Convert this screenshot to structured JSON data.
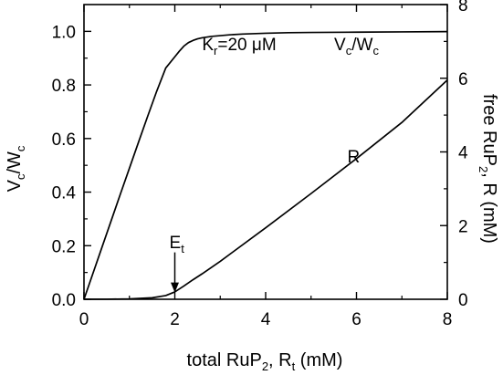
{
  "chart_data": {
    "type": "line",
    "title": "",
    "xlabel": {
      "main": "total RuP",
      "sub1": "2",
      "mid": ", R",
      "sub2": "t",
      "tail": " (mM)"
    },
    "ylabel_left": {
      "a": "V",
      "a_sub": "c",
      "sep": "/W",
      "b_sub": "c"
    },
    "ylabel_right": {
      "main": "free RuP",
      "sub": "2",
      "tail": ", R (mM)"
    },
    "xlim": [
      0,
      8
    ],
    "ylim_left": [
      0,
      1.1
    ],
    "ylim_right": [
      0,
      8
    ],
    "x_ticks": [
      "0",
      "2",
      "4",
      "6",
      "8"
    ],
    "y_left_ticks": [
      "0.0",
      "0.2",
      "0.4",
      "0.6",
      "0.8",
      "1.0"
    ],
    "y_right_ticks": [
      "0",
      "2",
      "4",
      "6",
      "8"
    ],
    "grid": false,
    "series": [
      {
        "axis": "left",
        "x": [
          0,
          0.2,
          0.4,
          0.6,
          0.8,
          1.0,
          1.2,
          1.4,
          1.6,
          1.8,
          2.0,
          2.1,
          2.2,
          2.3,
          2.4,
          2.5,
          2.6,
          2.8,
          3.0,
          3.2,
          3.5,
          4.0,
          4.5,
          5.0,
          6.0,
          7.0,
          8.0
        ],
        "y": [
          0,
          0.098,
          0.196,
          0.294,
          0.392,
          0.489,
          0.586,
          0.682,
          0.776,
          0.863,
          0.905,
          0.926,
          0.945,
          0.958,
          0.966,
          0.972,
          0.976,
          0.981,
          0.984,
          0.987,
          0.99,
          0.993,
          0.995,
          0.996,
          0.997,
          0.998,
          0.999
        ]
      },
      {
        "axis": "right",
        "x": [
          0,
          0.5,
          1.0,
          1.5,
          1.8,
          2.0,
          2.2,
          2.4,
          2.6,
          3.0,
          4.0,
          5.0,
          6.0,
          7.0,
          8.0
        ],
        "y": [
          0,
          0.002,
          0.01,
          0.04,
          0.1,
          0.2,
          0.36,
          0.53,
          0.69,
          1.03,
          1.94,
          2.87,
          3.82,
          4.8,
          5.95
        ]
      }
    ],
    "annotations": {
      "kr": {
        "main": "K",
        "sub": "r",
        "rest": "=20 μM",
        "x": 2.6,
        "y_left": 0.93
      },
      "vw": {
        "a": "V",
        "a_sub": "c",
        "sep": "/W",
        "b_sub": "c",
        "x": 6.0,
        "y_left": 0.93
      },
      "r": {
        "text": "R",
        "x": 5.8,
        "y_left": 0.51
      },
      "et": {
        "main": "E",
        "sub": "t",
        "x": 2.0,
        "y_left_text": 0.19,
        "arrow_from": 0.175,
        "arrow_to": 0.025
      }
    }
  }
}
